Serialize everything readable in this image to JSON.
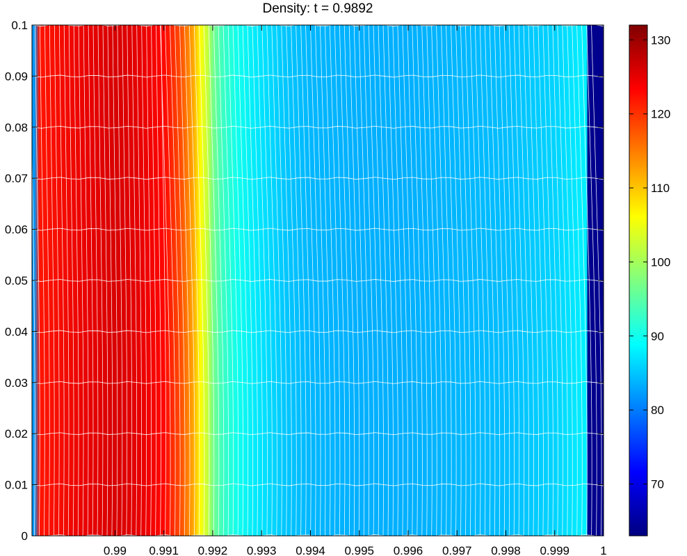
{
  "chart_data": {
    "type": "heatmap",
    "title": "Density: t = 0.9892",
    "xlabel": "",
    "ylabel": "",
    "xlim": [
      0.9883,
      1.0
    ],
    "ylim": [
      0,
      0.1
    ],
    "x_ticks": [
      0.99,
      0.991,
      0.992,
      0.993,
      0.994,
      0.995,
      0.996,
      0.997,
      0.998,
      0.999,
      1
    ],
    "x_tick_labels": [
      "0.99",
      "0.991",
      "0.992",
      "0.993",
      "0.994",
      "0.995",
      "0.996",
      "0.997",
      "0.998",
      "0.999",
      "1"
    ],
    "y_ticks": [
      0,
      0.01,
      0.02,
      0.03,
      0.04,
      0.05,
      0.06,
      0.07,
      0.08,
      0.09,
      0.1
    ],
    "y_tick_labels": [
      "0",
      "0.01",
      "0.02",
      "0.03",
      "0.04",
      "0.05",
      "0.06",
      "0.07",
      "0.08",
      "0.09",
      "0.1"
    ],
    "colorbar": {
      "range": [
        63,
        132
      ],
      "ticks": [
        70,
        80,
        90,
        100,
        110,
        120,
        130
      ],
      "tick_labels": [
        "70",
        "80",
        "90",
        "100",
        "110",
        "120",
        "130"
      ],
      "colormap": "jet"
    },
    "density_profile": {
      "x": [
        0.98835,
        0.98845,
        0.9895,
        0.99,
        0.9905,
        0.991,
        0.99135,
        0.9916,
        0.99175,
        0.9919,
        0.992,
        0.9922,
        0.9925,
        0.993,
        0.9935,
        0.994,
        0.995,
        0.996,
        0.997,
        0.998,
        0.999,
        0.99965,
        0.99968,
        1.0
      ],
      "density": [
        82,
        122,
        125,
        126,
        125,
        123,
        118,
        112,
        106,
        102,
        97,
        93,
        90,
        87,
        85,
        84,
        83.5,
        83.5,
        84,
        84.5,
        86,
        88,
        64,
        64
      ]
    },
    "mesh_lines": "white",
    "grid": false
  }
}
